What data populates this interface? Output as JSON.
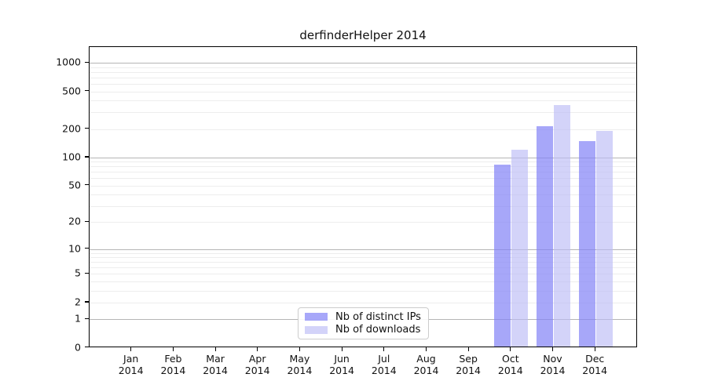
{
  "title": "derfinderHelper 2014",
  "colors": {
    "ips_bar": "rgba(130,130,247,0.70)",
    "downloads_bar": "rgba(187,187,246,0.65)",
    "grid_major": "#b5b5b5",
    "grid_minor": "#ededed",
    "axis": "#000000"
  },
  "legend": {
    "items": [
      {
        "label": "Nb of distinct IPs",
        "color": "rgba(130,130,247,0.70)"
      },
      {
        "label": "Nb of downloads",
        "color": "rgba(187,187,246,0.65)"
      }
    ]
  },
  "chart_data": {
    "type": "bar",
    "title": "derfinderHelper 2014",
    "categories": [
      "Jan 2014",
      "Feb 2014",
      "Mar 2014",
      "Apr 2014",
      "May 2014",
      "Jun 2014",
      "Jul 2014",
      "Aug 2014",
      "Sep 2014",
      "Oct 2014",
      "Nov 2014",
      "Dec 2014"
    ],
    "series": [
      {
        "name": "Nb of distinct IPs",
        "color": "rgba(130,130,247,0.70)",
        "values": [
          0,
          0,
          0,
          0,
          0,
          0,
          0,
          0,
          0,
          80,
          206,
          143
        ]
      },
      {
        "name": "Nb of downloads",
        "color": "rgba(187,187,246,0.65)",
        "values": [
          0,
          0,
          0,
          0,
          0,
          0,
          0,
          0,
          0,
          117,
          347,
          185
        ]
      }
    ],
    "xlabel": "",
    "ylabel": "",
    "yscale": "log10(1+y)",
    "ylim": [
      0,
      1464
    ],
    "yticks": [
      0,
      1,
      2,
      5,
      10,
      20,
      50,
      100,
      200,
      500,
      1000
    ],
    "grid": "horizontal; faint minor lines at 2-9 per decade, darker lines at 1,10,100,1000",
    "legend_position": "inside plot, bottom center-left"
  }
}
